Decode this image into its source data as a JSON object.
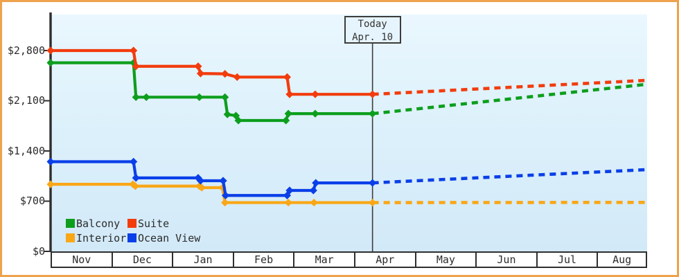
{
  "today_flag": {
    "line1": "Today",
    "line2": "Apr. 10"
  },
  "legend": {
    "items": [
      {
        "label": "Balcony",
        "color": "#0d9e1d"
      },
      {
        "label": "Suite",
        "color": "#f23c0d"
      },
      {
        "label": "Interior",
        "color": "#f9a716"
      },
      {
        "label": "Ocean View",
        "color": "#0a3fe8"
      }
    ]
  },
  "colors": {
    "frame": "#eda24b",
    "axis": "#2e2e2e",
    "today_line": "#3c3c3c",
    "text": "#2b2b2b"
  },
  "chart_data": {
    "type": "line",
    "title": "",
    "xlabel": "",
    "ylabel": "",
    "grid": false,
    "legend_position": "inside-bottom-left",
    "x_categories": [
      "Nov",
      "Dec",
      "Jan",
      "Feb",
      "Mar",
      "Apr",
      "May",
      "Jun",
      "Jul",
      "Aug"
    ],
    "x_months_total": 10,
    "ylim": [
      0,
      2800
    ],
    "y_ticks": [
      {
        "value": 0,
        "label": "$0"
      },
      {
        "value": 700,
        "label": "$700"
      },
      {
        "value": 1400,
        "label": "$1,400"
      },
      {
        "value": 2100,
        "label": "$2,100"
      },
      {
        "value": 2800,
        "label": "$2,800"
      }
    ],
    "today_x_months": 5.28,
    "today_label": "Apr. 10",
    "series": [
      {
        "name": "Interior",
        "color": "#f9a716",
        "history": [
          [
            0,
            935
          ],
          [
            1.35,
            935
          ],
          [
            1.39,
            910
          ],
          [
            2.44,
            910
          ],
          [
            2.48,
            888
          ],
          [
            2.82,
            888
          ],
          [
            2.86,
            680
          ],
          [
            3.9,
            680
          ],
          [
            4.32,
            680
          ],
          [
            5.28,
            680
          ]
        ],
        "forecast_end": [
          9.78,
          683
        ]
      },
      {
        "name": "Ocean View",
        "color": "#0a3fe8",
        "history": [
          [
            0,
            1250
          ],
          [
            1.36,
            1250
          ],
          [
            1.4,
            1025
          ],
          [
            2.42,
            1025
          ],
          [
            2.46,
            985
          ],
          [
            2.83,
            985
          ],
          [
            2.87,
            780
          ],
          [
            3.88,
            780
          ],
          [
            3.92,
            850
          ],
          [
            4.31,
            850
          ],
          [
            4.35,
            955
          ],
          [
            5.28,
            955
          ]
        ],
        "forecast_end": [
          9.78,
          1140
        ]
      },
      {
        "name": "Balcony",
        "color": "#0d9e1d",
        "history": [
          [
            0,
            2630
          ],
          [
            1.36,
            2630
          ],
          [
            1.4,
            2150
          ],
          [
            1.57,
            2150
          ],
          [
            2.44,
            2150
          ],
          [
            2.86,
            2150
          ],
          [
            2.9,
            1910
          ],
          [
            3.04,
            1893
          ],
          [
            3.08,
            1825
          ],
          [
            3.86,
            1825
          ],
          [
            3.9,
            1920
          ],
          [
            4.34,
            1920
          ],
          [
            5.28,
            1920
          ]
        ],
        "forecast_end": [
          9.78,
          2330
        ]
      },
      {
        "name": "Suite",
        "color": "#f23c0d",
        "history": [
          [
            0,
            2800
          ],
          [
            1.36,
            2800
          ],
          [
            1.4,
            2580
          ],
          [
            2.42,
            2580
          ],
          [
            2.46,
            2480
          ],
          [
            2.86,
            2475
          ],
          [
            3.06,
            2430
          ],
          [
            3.88,
            2430
          ],
          [
            3.92,
            2190
          ],
          [
            4.34,
            2190
          ],
          [
            5.28,
            2190
          ]
        ],
        "forecast_end": [
          9.78,
          2385
        ]
      }
    ]
  }
}
